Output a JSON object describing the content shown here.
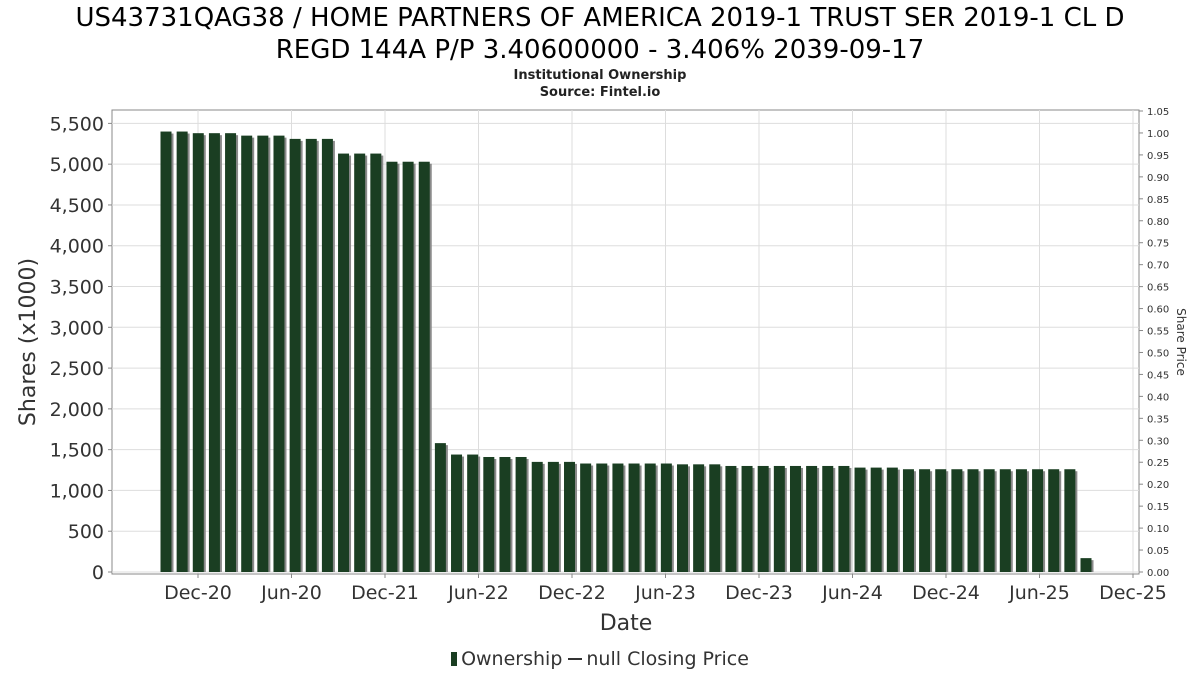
{
  "title_line1": "US43731QAG38 / HOME PARTNERS OF AMERICA 2019-1 TRUST SER 2019-1 CL D",
  "title_line2": "REGD 144A P/P 3.40600000 - 3.406% 2039-09-17",
  "subtitle_line1": "Institutional Ownership",
  "subtitle_line2": "Source: Fintel.io",
  "legend": {
    "ownership": "Ownership",
    "price": "null Closing Price"
  },
  "colors": {
    "bar": "#1a3e22",
    "bar_shadow": "#8a8a8a",
    "grid": "#dddddd",
    "axis": "#888888"
  },
  "chart_data": {
    "type": "bar",
    "xlabel": "Date",
    "ylabel": "Shares (x1000)",
    "y2label": "Share Price",
    "ylim": [
      0,
      5750
    ],
    "y2lim": [
      0,
      1.05
    ],
    "yticks": [
      0,
      500,
      1000,
      1500,
      2000,
      2500,
      3000,
      3500,
      4000,
      4500,
      5000,
      5500
    ],
    "ytick_labels": [
      "0",
      "500",
      "1,000",
      "1,500",
      "2,000",
      "2,500",
      "3,000",
      "3,500",
      "4,000",
      "4,500",
      "5,000",
      "5,500"
    ],
    "y2ticks": [
      "0.00",
      "0.05",
      "0.10",
      "0.15",
      "0.20",
      "0.25",
      "0.30",
      "0.35",
      "0.40",
      "0.45",
      "0.50",
      "0.55",
      "0.60",
      "0.65",
      "0.70",
      "0.75",
      "0.80",
      "0.85",
      "0.90",
      "0.95",
      "1.00",
      "1.05"
    ],
    "xticks": [
      "Dec-20",
      "Jun-20",
      "Dec-21",
      "Jun-22",
      "Dec-22",
      "Jun-23",
      "Dec-23",
      "Jun-24",
      "Dec-24",
      "Jun-25",
      "Dec-25"
    ],
    "grid": true,
    "series": [
      {
        "name": "Ownership",
        "values": [
          5400,
          5400,
          5380,
          5380,
          5380,
          5350,
          5350,
          5350,
          5310,
          5310,
          5310,
          5130,
          5130,
          5130,
          5030,
          5030,
          5030,
          1580,
          1440,
          1440,
          1410,
          1410,
          1410,
          1350,
          1350,
          1350,
          1330,
          1330,
          1330,
          1330,
          1330,
          1330,
          1320,
          1320,
          1320,
          1300,
          1300,
          1300,
          1300,
          1300,
          1300,
          1300,
          1300,
          1280,
          1280,
          1280,
          1260,
          1260,
          1260,
          1260,
          1260,
          1260,
          1260,
          1260,
          1260,
          1260,
          1260,
          170
        ]
      }
    ]
  }
}
